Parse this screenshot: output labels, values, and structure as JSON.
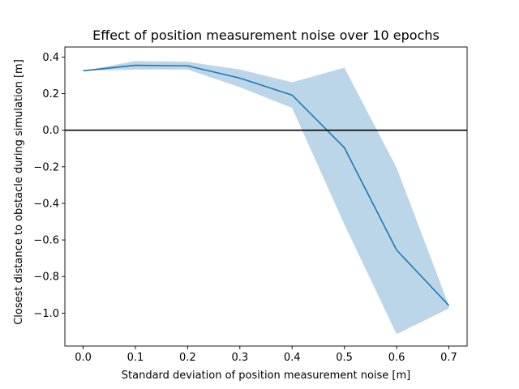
{
  "chart_data": {
    "type": "line",
    "title": "Effect of position measurement noise over 10 epochs",
    "xlabel": "Standard deviation of position measurement noise [m]",
    "ylabel": "Closest distance to obstacle during simulation [m]",
    "xlim": [
      -0.035,
      0.735
    ],
    "ylim": [
      -1.18,
      0.455
    ],
    "xticks": [
      0.0,
      0.1,
      0.2,
      0.3,
      0.4,
      0.5,
      0.6,
      0.7
    ],
    "xtick_labels": [
      "0.0",
      "0.1",
      "0.2",
      "0.3",
      "0.4",
      "0.5",
      "0.6",
      "0.7"
    ],
    "yticks": [
      0.4,
      0.2,
      0.0,
      -0.2,
      -0.4,
      -0.6,
      -0.8,
      -1.0
    ],
    "ytick_labels": [
      "0.4",
      "0.2",
      "0.0",
      "−0.2",
      "−0.4",
      "−0.6",
      "−0.8",
      "−1.0"
    ],
    "grid": false,
    "series": [
      {
        "x": [
          0.0,
          0.1,
          0.2,
          0.3,
          0.4,
          0.5,
          0.6,
          0.7
        ],
        "y": [
          0.325,
          0.355,
          0.352,
          0.285,
          0.192,
          -0.095,
          -0.655,
          -0.958
        ],
        "upper": [
          0.325,
          0.378,
          0.374,
          0.332,
          0.262,
          0.342,
          -0.205,
          -0.958
        ],
        "lower": [
          0.325,
          0.332,
          0.332,
          0.235,
          0.122,
          -0.515,
          -1.115,
          -0.975
        ],
        "color": "#1f77b4",
        "band_color": "#1f77b4",
        "band_opacity": 0.3
      }
    ],
    "reference_lines": [
      {
        "y": 0.0,
        "color": "#000000"
      }
    ]
  }
}
